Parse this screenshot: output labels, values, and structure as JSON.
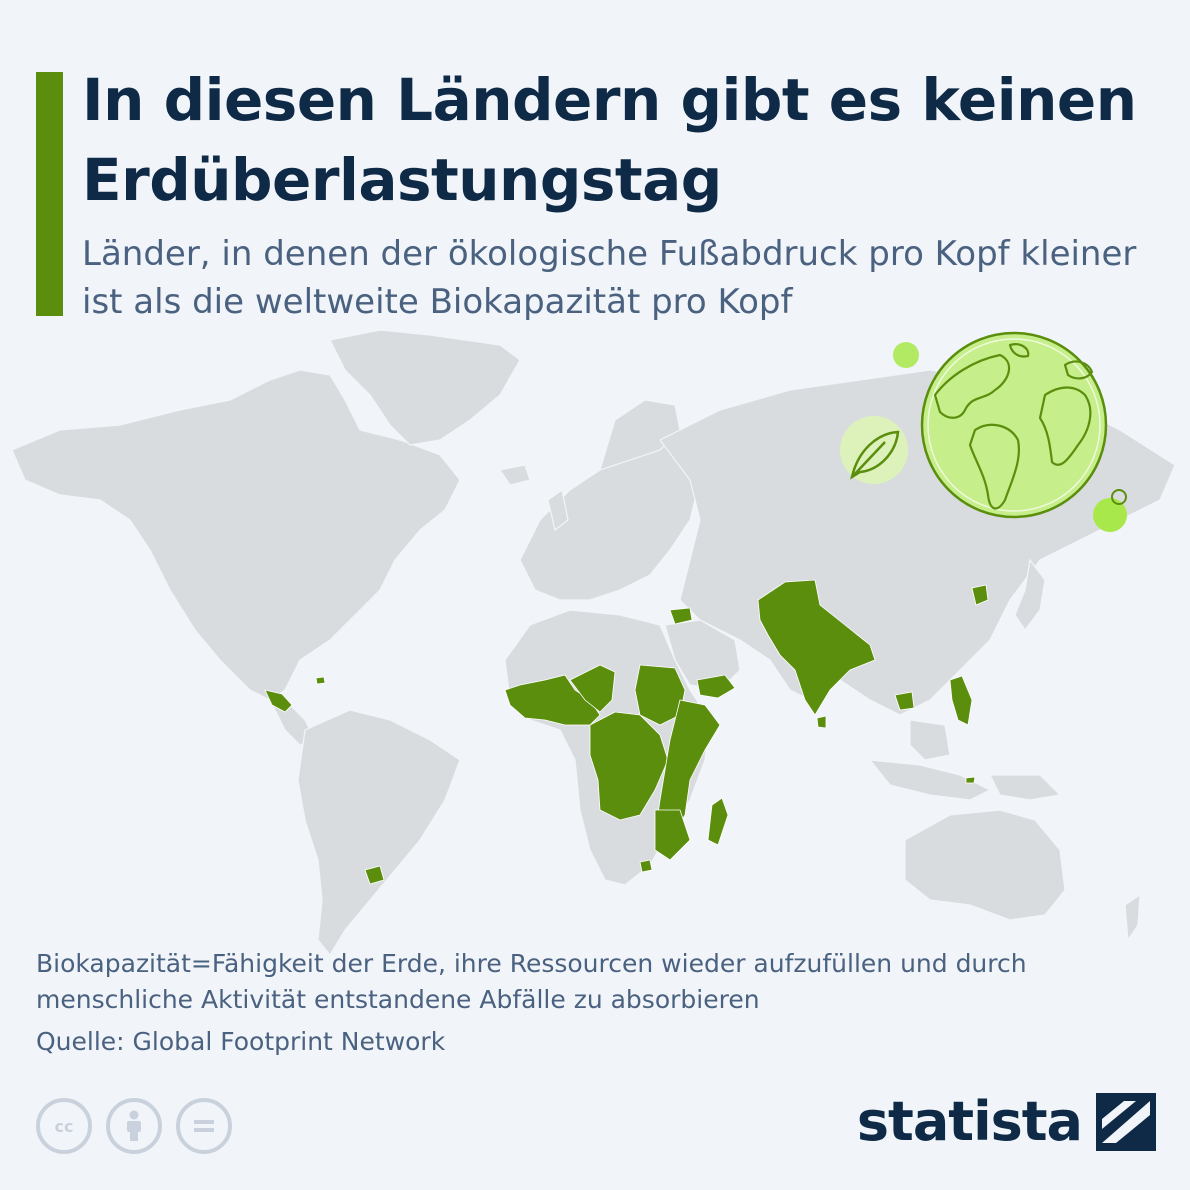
{
  "header": {
    "title": "In diesen Ländern gibt es keinen Erdüberlastungstag",
    "subtitle": "Länder, in denen der ökologische Fußabdruck pro Kopf kleiner ist als die weltweite Biokapazität pro Kopf"
  },
  "footer": {
    "note": "Biokapazität=Fähigkeit der Erde, ihre Ressourcen wieder aufzufüllen und durch menschliche Aktivität entstandene Abfälle zu absorbieren",
    "source": "Quelle: Global Footprint Network",
    "license_icons": [
      "cc-icon",
      "attribution-icon",
      "no-derivatives-icon"
    ],
    "logo_text": "statista"
  },
  "colors": {
    "accent": "#5b8e0d",
    "title": "#0e2a47",
    "text": "#4a6180",
    "background": "#f1f5f9",
    "land": "#d9dcdf",
    "highlight": "#5b8e0d",
    "globe": "#c6ee8a",
    "bubble": "#a8e84a"
  },
  "map": {
    "highlighted_regions": [
      "Zentralamerika",
      "Haiti",
      "Westafrika",
      "Zentralafrika",
      "Ostafrika",
      "Madagaskar",
      "Lesotho",
      "Uruguay",
      "Syrien",
      "Jemen",
      "Pakistan",
      "Indien",
      "Bangladesch",
      "Sri Lanka",
      "Nordkorea",
      "Myanmar",
      "Kambodscha",
      "Philippinen",
      "Timor-Leste"
    ]
  }
}
